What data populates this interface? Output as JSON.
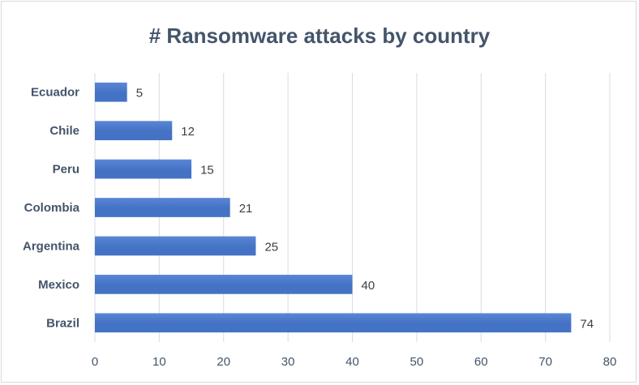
{
  "chart_data": {
    "type": "bar",
    "orientation": "horizontal",
    "title": "# Ransomware attacks by country",
    "categories": [
      "Ecuador",
      "Chile",
      "Peru",
      "Colombia",
      "Argentina",
      "Mexico",
      "Brazil"
    ],
    "values": [
      5,
      12,
      15,
      21,
      25,
      40,
      74
    ],
    "xlim": [
      0,
      80
    ],
    "xticks": [
      0,
      10,
      20,
      30,
      40,
      50,
      60,
      70,
      80
    ],
    "xlabel": "",
    "ylabel": "",
    "grid": "vertical",
    "legend": "none",
    "bar_color": "#4472c4",
    "bar_color_light": "#5b86d6"
  }
}
